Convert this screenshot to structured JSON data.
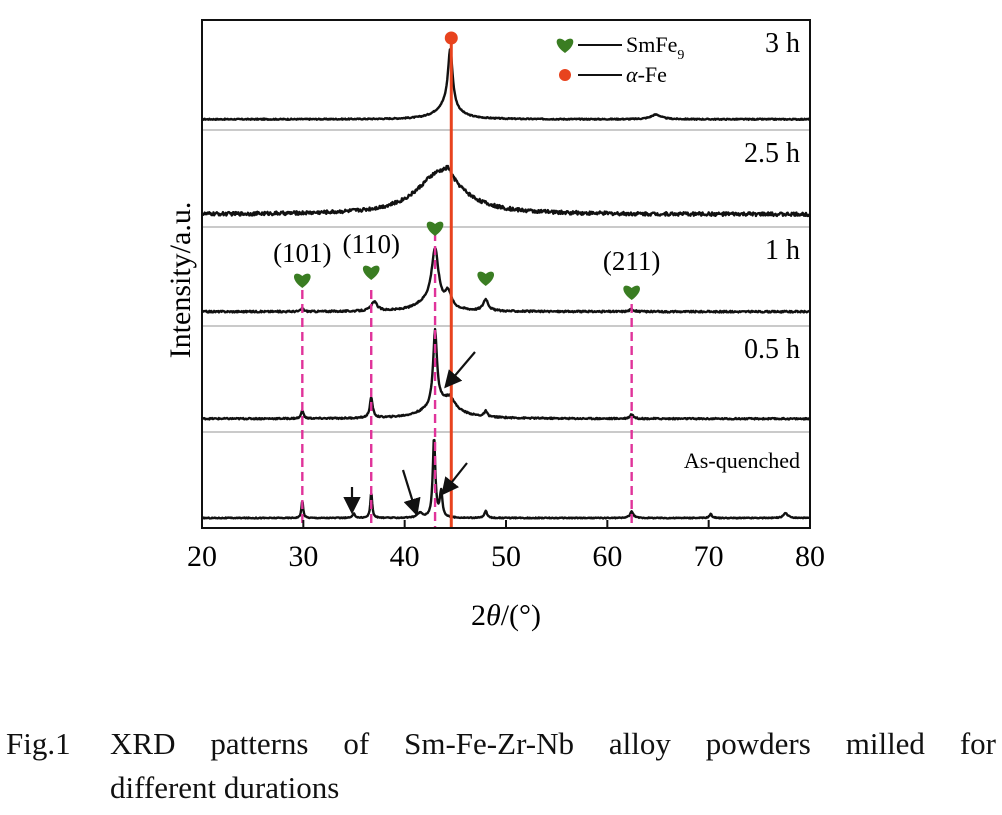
{
  "chart_data": {
    "type": "line",
    "title": "",
    "xlabel": "2θ/(°)",
    "ylabel": "Intensity/a.u.",
    "xlim": [
      20,
      80
    ],
    "x_ticks": [
      20,
      30,
      40,
      50,
      60,
      70,
      80
    ],
    "grid": false,
    "colors": {
      "trace": "#111111",
      "alpha_fe_line": "#e8431e",
      "smfe9_guides": "#e0339a",
      "heart": "#3a7d22",
      "dot": "#e8431e",
      "separator": "#aaaaaa"
    },
    "legend": {
      "placement": "top-right",
      "entries": [
        {
          "marker": "heart",
          "sub_label_main": "SmFe",
          "sub_label_sub": "9"
        },
        {
          "marker": "dot",
          "label_prefix": "α",
          "label_suffix": "-Fe"
        }
      ]
    },
    "reference_lines": {
      "alpha_fe": 44.6,
      "smfe9": [
        29.9,
        36.7,
        43.0,
        62.4
      ]
    },
    "series": [
      {
        "name": "3 h",
        "baseline": 0.05,
        "noise": 0.006,
        "peaks": [
          [
            44.5,
            0.62,
            0.55
          ],
          [
            44.2,
            0.14,
            2.5
          ],
          [
            64.8,
            0.05,
            1.2
          ]
        ]
      },
      {
        "name": "2.5 h",
        "baseline": 0.08,
        "noise": 0.022,
        "peaks": [
          [
            43.5,
            0.52,
            5.5
          ],
          [
            44.3,
            0.1,
            0.8
          ]
        ]
      },
      {
        "name": "1 h",
        "baseline": 0.1,
        "noise": 0.01,
        "peaks": [
          [
            43.0,
            0.65,
            0.8
          ],
          [
            44.3,
            0.18,
            0.7
          ],
          [
            37.0,
            0.11,
            0.7
          ],
          [
            48.0,
            0.14,
            0.6
          ],
          [
            29.9,
            0.04,
            0.3
          ],
          [
            62.4,
            0.03,
            0.5
          ],
          [
            42.5,
            0.12,
            3.0
          ]
        ]
      },
      {
        "name": "0.5 h",
        "baseline": 0.08,
        "noise": 0.008,
        "peaks": [
          [
            43.0,
            0.82,
            0.45
          ],
          [
            43.6,
            0.18,
            3.5
          ],
          [
            36.7,
            0.22,
            0.35
          ],
          [
            29.9,
            0.1,
            0.25
          ],
          [
            48.0,
            0.06,
            0.35
          ],
          [
            62.4,
            0.05,
            0.4
          ],
          [
            44.5,
            0.1,
            1.0
          ]
        ]
      },
      {
        "name": "As-quenched",
        "baseline": 0.05,
        "noise": 0.006,
        "peaks": [
          [
            42.9,
            1.0,
            0.3
          ],
          [
            43.6,
            0.32,
            0.3
          ],
          [
            36.7,
            0.32,
            0.22
          ],
          [
            29.9,
            0.22,
            0.2
          ],
          [
            35.0,
            0.05,
            0.3
          ],
          [
            41.5,
            0.06,
            0.6
          ],
          [
            48.0,
            0.09,
            0.3
          ],
          [
            62.4,
            0.08,
            0.4
          ],
          [
            70.2,
            0.05,
            0.3
          ],
          [
            77.6,
            0.06,
            0.5
          ]
        ]
      }
    ],
    "annotations": {
      "miller": [
        {
          "text": "(101)",
          "x": 29.9
        },
        {
          "text": "(110)",
          "x": 36.7
        },
        {
          "text": "(211)",
          "x": 62.4
        }
      ],
      "hearts_1h": [
        29.9,
        36.7,
        43.0,
        48.0,
        62.4
      ],
      "arrows": [
        {
          "series": "0.5 h",
          "target_x": 44.3
        },
        {
          "series": "As-quenched",
          "target_x": 35.0
        },
        {
          "series": "As-quenched",
          "target_x": 41.5
        },
        {
          "series": "As-quenched",
          "target_x": 44.0
        }
      ]
    }
  },
  "caption": {
    "label": "Fig.1",
    "line1": "XRD patterns of Sm-Fe-Zr-Nb alloy powders milled for",
    "line2": "different durations"
  }
}
